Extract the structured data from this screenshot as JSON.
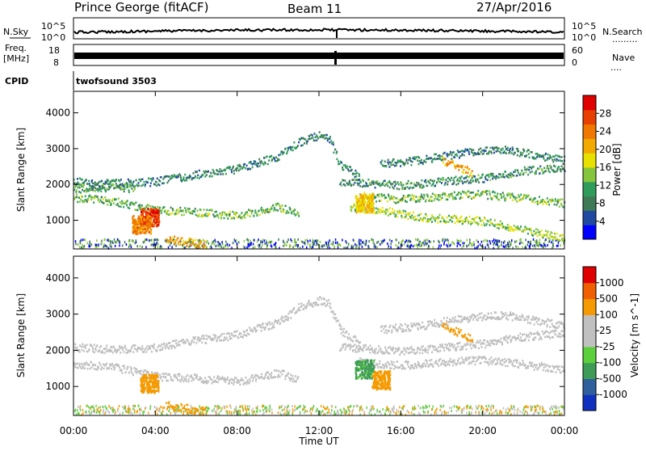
{
  "header": {
    "station": "Prince George (fitACF)",
    "beam": "Beam 11",
    "date": "27/Apr/2016"
  },
  "noise_panel": {
    "left_label": "N.Sky",
    "right_label": "N.Search",
    "left_ticks": [
      "10^5",
      "10^0"
    ],
    "right_ticks": [
      "10^5",
      "10^0"
    ]
  },
  "freq_panel": {
    "left_label_1": "Freq.",
    "left_label_2": "[MHz]",
    "right_label": "Nave",
    "left_ticks": [
      "18",
      "8"
    ],
    "right_ticks": [
      "60",
      "0"
    ]
  },
  "cpid": {
    "label": "CPID",
    "value": "twofsound 3503"
  },
  "colors": {
    "power_scale": [
      "#0000ff",
      "#1f4aa0",
      "#3d7a55",
      "#2f9c5c",
      "#86c63c",
      "#e8e000",
      "#f2a900",
      "#f07800",
      "#e84000",
      "#e00000"
    ],
    "velocity_scale": [
      "#e00000",
      "#f06000",
      "#f59a00",
      "#c0c0c0",
      "#c0c0c0",
      "#5ccf3c",
      "#3e9c56",
      "#2f5f9c",
      "#1030c0"
    ],
    "ground_scatter": "#bfbfbf"
  },
  "chart_data": [
    {
      "type": "heatmap",
      "panel": "power",
      "ylabel": "Slant Range [km]",
      "yticks": [
        "1000",
        "2000",
        "3000",
        "4000"
      ],
      "ylim": [
        200,
        4600
      ],
      "xlim_hours": [
        0,
        24
      ],
      "colorbar": {
        "label": "Power [dB]",
        "ticks": [
          "4",
          "8",
          "12",
          "16",
          "20",
          "24",
          "28"
        ],
        "range": [
          0,
          30
        ]
      },
      "features": [
        {
          "name": "band",
          "points": [
            [
              0,
              2100
            ],
            [
              2,
              2050
            ],
            [
              4,
              2100
            ],
            [
              6,
              2300
            ],
            [
              8,
              2450
            ],
            [
              10,
              2800
            ],
            [
              11,
              3200
            ],
            [
              12,
              3400
            ],
            [
              12.5,
              3300
            ],
            [
              13,
              2600
            ],
            [
              14,
              2200
            ]
          ],
          "value": 8
        },
        {
          "name": "band",
          "points": [
            [
              0,
              1650
            ],
            [
              2,
              1550
            ],
            [
              4,
              1300
            ],
            [
              6,
              1250
            ],
            [
              8,
              1150
            ],
            [
              10,
              1400
            ],
            [
              11,
              1200
            ]
          ],
          "value": 12
        },
        {
          "name": "band",
          "points": [
            [
              0,
              1900
            ],
            [
              2,
              1950
            ],
            [
              3,
              1900
            ]
          ],
          "value": 10
        },
        {
          "name": "band",
          "points": [
            [
              4.5,
              500
            ],
            [
              5.5,
              420
            ],
            [
              6.5,
              330
            ]
          ],
          "value": 20
        },
        {
          "name": "band",
          "points": [
            [
              13.5,
              1400
            ],
            [
              15,
              1300
            ],
            [
              17,
              1100
            ],
            [
              20,
              1000
            ],
            [
              24,
              500
            ]
          ],
          "value": 14
        },
        {
          "name": "band",
          "points": [
            [
              13,
              2100
            ],
            [
              16,
              2000
            ],
            [
              18,
              2100
            ],
            [
              20,
              2200
            ],
            [
              22,
              2400
            ],
            [
              24,
              2500
            ]
          ],
          "value": 9
        },
        {
          "name": "band",
          "points": [
            [
              14,
              1700
            ],
            [
              16,
              1600
            ],
            [
              18,
              1700
            ],
            [
              20,
              1750
            ],
            [
              24,
              1500
            ]
          ],
          "value": 12
        },
        {
          "name": "band",
          "points": [
            [
              15,
              2600
            ],
            [
              17,
              2700
            ],
            [
              19,
              2900
            ],
            [
              21,
              3000
            ],
            [
              24,
              2700
            ]
          ],
          "value": 8
        },
        {
          "name": "band",
          "points": [
            [
              18,
              2700
            ],
            [
              19.5,
              2350
            ]
          ],
          "value": 20
        },
        {
          "name": "blob",
          "x": 3.7,
          "y": 1100,
          "value": 26
        },
        {
          "name": "blob",
          "x": 3.3,
          "y": 900,
          "value": 22
        },
        {
          "name": "blob",
          "x": 14.2,
          "y": 1500,
          "value": 18
        }
      ]
    },
    {
      "type": "heatmap",
      "panel": "velocity",
      "ylabel": "Slant Range [km]",
      "yticks": [
        "1000",
        "2000",
        "3000",
        "4000"
      ],
      "ylim": [
        200,
        4600
      ],
      "xlim_hours": [
        0,
        24
      ],
      "xlabel": "Time UT",
      "xticks": [
        "00:00",
        "04:00",
        "08:00",
        "12:00",
        "16:00",
        "20:00",
        "00:00"
      ],
      "colorbar": {
        "label": "Velocity [m s^-1]",
        "ticks": [
          "1000",
          "500",
          "100",
          "25",
          "-25",
          "-100",
          "-500",
          "-1000"
        ],
        "range": [
          -1000,
          1000
        ]
      },
      "features": [
        {
          "name": "band",
          "points": [
            [
              0,
              2100
            ],
            [
              2,
              2050
            ],
            [
              4,
              2100
            ],
            [
              6,
              2300
            ],
            [
              8,
              2450
            ],
            [
              10,
              2800
            ],
            [
              11,
              3200
            ],
            [
              12,
              3400
            ],
            [
              12.5,
              3300
            ],
            [
              13,
              2600
            ],
            [
              14,
              2200
            ]
          ],
          "value": 0
        },
        {
          "name": "band",
          "points": [
            [
              0,
              1650
            ],
            [
              2,
              1550
            ],
            [
              4,
              1300
            ],
            [
              6,
              1250
            ],
            [
              8,
              1150
            ],
            [
              10,
              1400
            ],
            [
              11,
              1200
            ]
          ],
          "value": 0
        },
        {
          "name": "band",
          "points": [
            [
              4.5,
              500
            ],
            [
              5.5,
              420
            ],
            [
              6.5,
              330
            ]
          ],
          "value": -300
        },
        {
          "name": "band",
          "points": [
            [
              13,
              2100
            ],
            [
              16,
              2000
            ],
            [
              18,
              2100
            ],
            [
              20,
              2200
            ],
            [
              22,
              2400
            ],
            [
              24,
              2500
            ]
          ],
          "value": 0
        },
        {
          "name": "band",
          "points": [
            [
              14,
              1700
            ],
            [
              16,
              1600
            ],
            [
              18,
              1700
            ],
            [
              20,
              1750
            ],
            [
              24,
              1500
            ]
          ],
          "value": 0
        },
        {
          "name": "band",
          "points": [
            [
              15,
              2600
            ],
            [
              17,
              2700
            ],
            [
              19,
              2900
            ],
            [
              21,
              3000
            ],
            [
              24,
              2700
            ]
          ],
          "value": 0
        },
        {
          "name": "band",
          "points": [
            [
              18,
              2700
            ],
            [
              19.5,
              2350
            ]
          ],
          "value": -300
        },
        {
          "name": "blob",
          "x": 3.7,
          "y": 1100,
          "value": -250
        },
        {
          "name": "blob",
          "x": 14.2,
          "y": 1500,
          "value": 150
        },
        {
          "name": "blob",
          "x": 15.0,
          "y": 1200,
          "value": -200
        }
      ]
    }
  ]
}
